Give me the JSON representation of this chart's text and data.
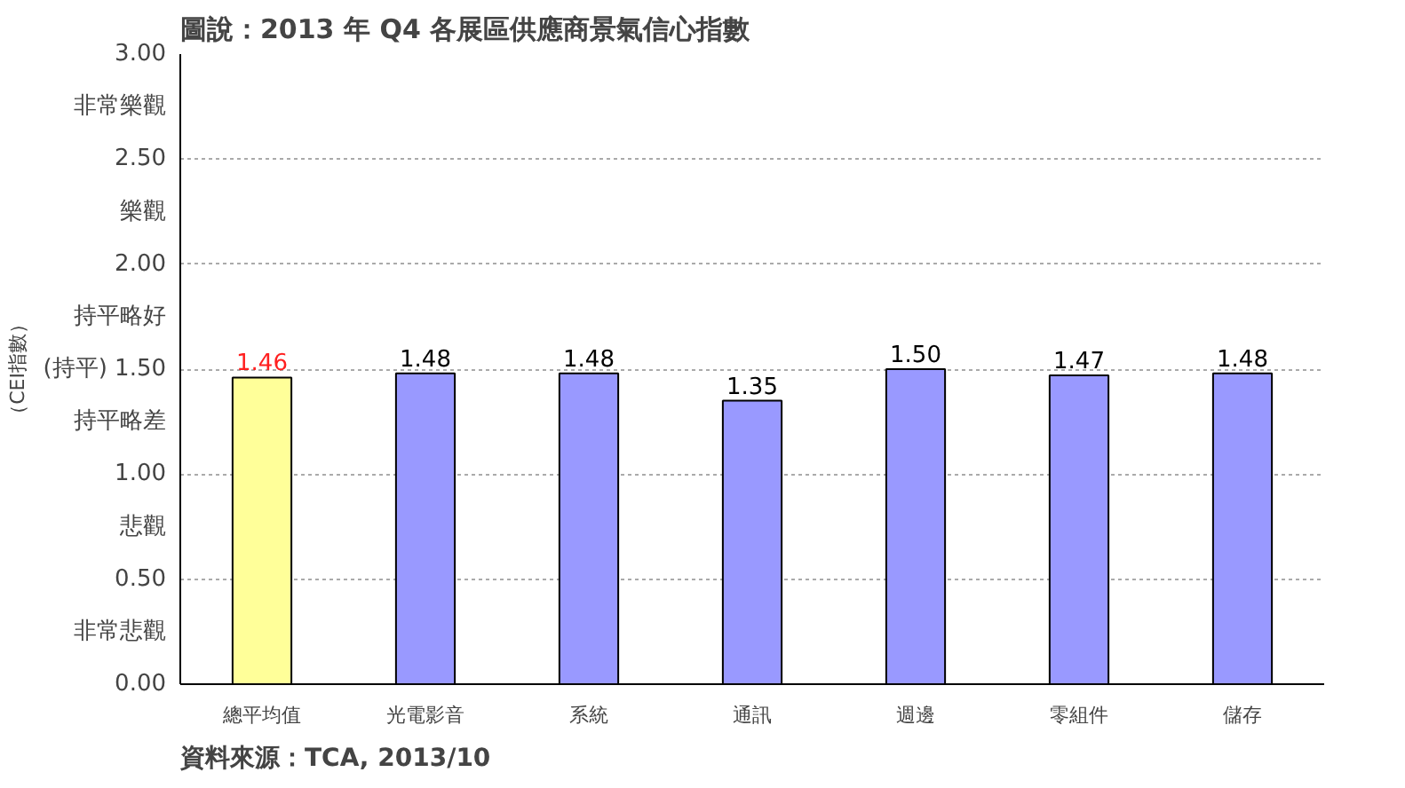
{
  "chart_data": {
    "type": "bar",
    "title": "圖說：2013 年 Q4 各展區供應商景氣信心指數",
    "ylabel": "（CEI指數）",
    "categories": [
      "總平均值",
      "光電影音",
      "系統",
      "通訊",
      "週邊",
      "零組件",
      "儲存"
    ],
    "values": [
      1.46,
      1.48,
      1.48,
      1.35,
      1.5,
      1.47,
      1.48
    ],
    "colors": [
      "#ffff99",
      "#9999ff",
      "#9999ff",
      "#9999ff",
      "#9999ff",
      "#9999ff",
      "#9999ff"
    ],
    "ylim": [
      0,
      3
    ],
    "yticks": [
      {
        "value": 0,
        "label": "0.00"
      },
      {
        "value": 0.25,
        "label": "非常悲觀"
      },
      {
        "value": 0.5,
        "label": "0.50"
      },
      {
        "value": 0.75,
        "label": "悲觀"
      },
      {
        "value": 1,
        "label": "1.00"
      },
      {
        "value": 1.25,
        "label": "持平略差"
      },
      {
        "value": 1.5,
        "label": "(持平) 1.50"
      },
      {
        "value": 1.75,
        "label": "持平略好"
      },
      {
        "value": 2,
        "label": "2.00"
      },
      {
        "value": 2.25,
        "label": "樂觀"
      },
      {
        "value": 2.5,
        "label": "2.50"
      },
      {
        "value": 2.75,
        "label": "非常樂觀"
      },
      {
        "value": 3,
        "label": "3.00"
      }
    ],
    "grid": "y",
    "value_labels": [
      "1.46",
      "1.48",
      "1.48",
      "1.35",
      "1.50",
      "1.47",
      "1.48"
    ],
    "annotations": [
      "資料來源：TCA, 2013/10"
    ]
  }
}
